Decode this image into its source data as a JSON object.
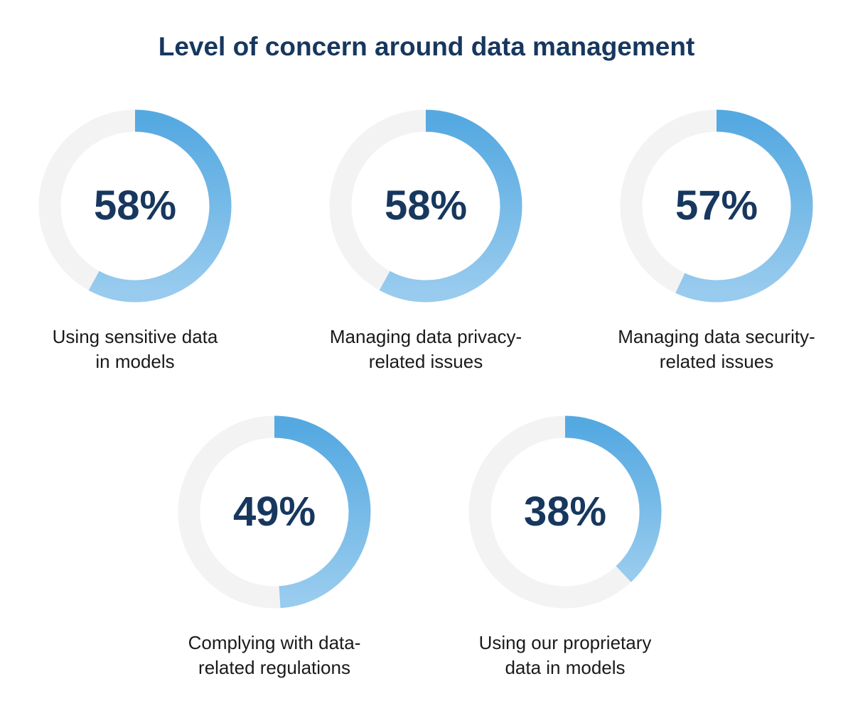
{
  "chart_data": {
    "type": "pie",
    "variant": "donut",
    "title": "Level of concern around data management",
    "unit": "%",
    "max": 100,
    "items": [
      {
        "value": 58,
        "display": "58%",
        "label_lines": [
          "Using sensitive data",
          "in models"
        ]
      },
      {
        "value": 58,
        "display": "58%",
        "label_lines": [
          "Managing data privacy-",
          "related issues"
        ]
      },
      {
        "value": 57,
        "display": "57%",
        "label_lines": [
          "Managing data security-",
          "related issues"
        ]
      },
      {
        "value": 49,
        "display": "49%",
        "label_lines": [
          "Complying with data-",
          "related regulations"
        ]
      },
      {
        "value": 38,
        "display": "38%",
        "label_lines": [
          "Using our proprietary",
          "data in models"
        ]
      }
    ],
    "colors": {
      "arc_start": "#55a9e1",
      "arc_end": "#98cbee",
      "track": "#f3f3f3",
      "value_text": "#17375e",
      "title_text": "#17375e",
      "label_text": "#1a1a1a"
    }
  }
}
